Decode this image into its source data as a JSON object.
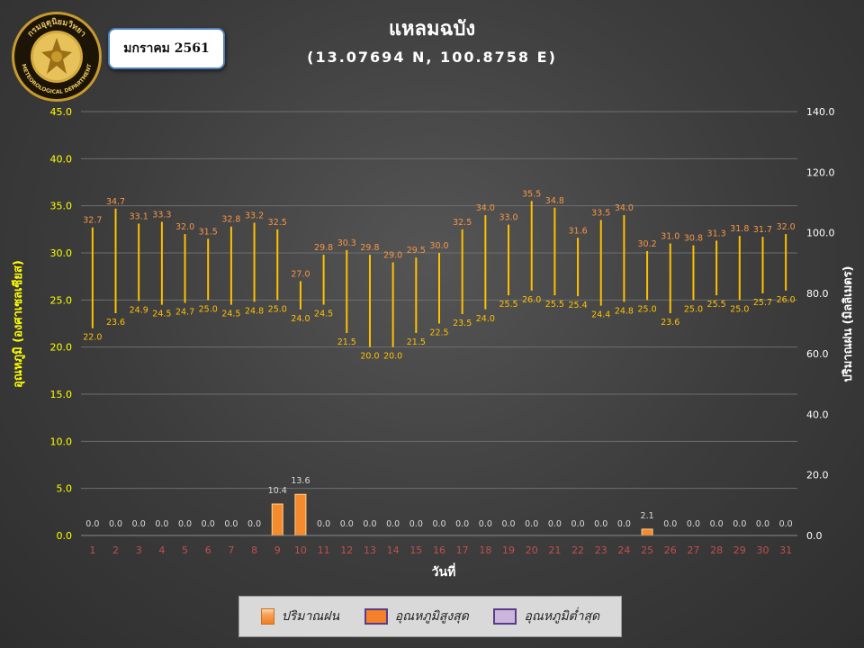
{
  "header": {
    "month": "มกราคม 2561",
    "title": "แหลมฉบัง",
    "subtitle": "(13.07694 N, 100.8758 E)"
  },
  "seal": {
    "text_top": "กรมอุตุนิยมวิทยา",
    "text_bottom": "METEOROLOGICAL DEPARTMENT"
  },
  "legend": {
    "rain": "ปริมาณฝน",
    "max": "อุณหภูมิสูงสุด",
    "min": "อุณหภูมิต่ำสุด"
  },
  "colors": {
    "temp_line": "#ffc000",
    "max_label": "#f79646",
    "min_label": "#ffc000",
    "rain_bar": "#f58b2e",
    "rain_label": "#d9d9d9",
    "y_left_text": "#ffff00",
    "y_right_text": "#ffffff",
    "x_tick_text": "#c0504d",
    "grid": "#6e6e6e"
  },
  "chart_data": {
    "type": "bar",
    "xlabel": "วันที่",
    "ylabel_left": "อุณหภูมิ (องศาเซลเซียส)",
    "ylabel_right": "ปริมาณฝน (มิลลิเมตร)",
    "y_left_ticks": [
      "0.0",
      "5.0",
      "10.0",
      "15.0",
      "20.0",
      "25.0",
      "30.0",
      "35.0",
      "40.0",
      "45.0"
    ],
    "y_right_ticks": [
      "0.0",
      "20.0",
      "40.0",
      "60.0",
      "80.0",
      "100.0",
      "120.0",
      "140.0"
    ],
    "ylim_left": [
      0,
      45
    ],
    "ylim_right": [
      0,
      140
    ],
    "grid": true,
    "legend_position": "bottom",
    "categories": [
      "1",
      "2",
      "3",
      "4",
      "5",
      "6",
      "7",
      "8",
      "9",
      "10",
      "11",
      "12",
      "13",
      "14",
      "15",
      "16",
      "17",
      "18",
      "19",
      "20",
      "21",
      "22",
      "23",
      "24",
      "25",
      "26",
      "27",
      "28",
      "29",
      "30",
      "31"
    ],
    "series": [
      {
        "name": "อุณหภูมิสูงสุด",
        "values": [
          32.7,
          34.7,
          33.1,
          33.3,
          32.0,
          31.5,
          32.8,
          33.2,
          32.5,
          27.0,
          29.8,
          30.3,
          29.8,
          29.0,
          29.5,
          30.0,
          32.5,
          34.0,
          33.0,
          35.5,
          34.8,
          31.6,
          33.5,
          34.0,
          30.2,
          31.0,
          30.8,
          31.3,
          31.8,
          31.7,
          32.0
        ]
      },
      {
        "name": "อุณหภูมิต่ำสุด",
        "values": [
          22.0,
          23.6,
          24.9,
          24.5,
          24.7,
          25.0,
          24.5,
          24.8,
          25.0,
          24.0,
          24.5,
          21.5,
          20.0,
          20.0,
          21.5,
          22.5,
          23.5,
          24.0,
          25.5,
          26.0,
          25.5,
          25.4,
          24.4,
          24.8,
          25.0,
          23.6,
          25.0,
          25.5,
          25.0,
          25.7,
          26.0
        ]
      },
      {
        "name": "ปริมาณฝน",
        "values": [
          0.0,
          0.0,
          0.0,
          0.0,
          0.0,
          0.0,
          0.0,
          0.0,
          10.4,
          13.6,
          0.0,
          0.0,
          0.0,
          0.0,
          0.0,
          0.0,
          0.0,
          0.0,
          0.0,
          0.0,
          0.0,
          0.0,
          0.0,
          0.0,
          2.1,
          0.0,
          0.0,
          0.0,
          0.0,
          0.0,
          0.0
        ]
      }
    ]
  }
}
